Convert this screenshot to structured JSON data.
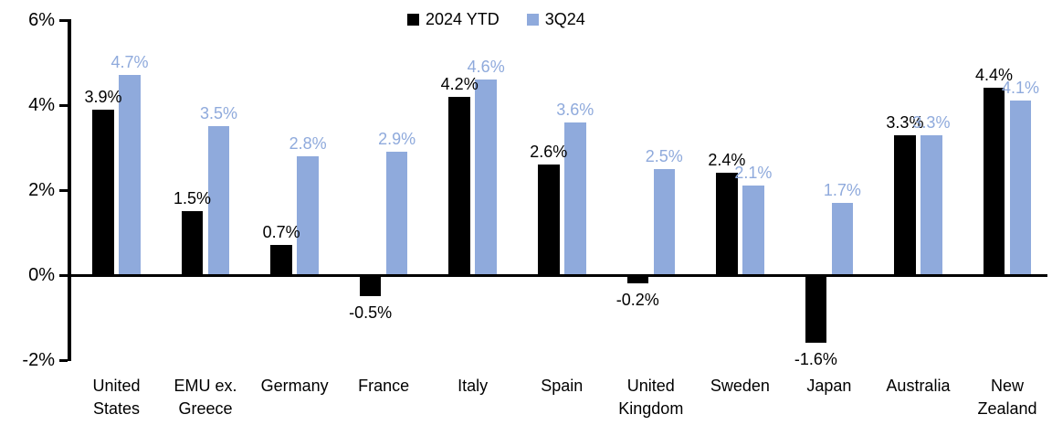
{
  "chart_data": {
    "type": "bar",
    "title": "",
    "xlabel": "",
    "ylabel": "",
    "categories": [
      "United States",
      "EMU ex. Greece",
      "Germany",
      "France",
      "Italy",
      "Spain",
      "United Kingdom",
      "Sweden",
      "Japan",
      "Australia",
      "New Zealand"
    ],
    "category_display_lines": [
      [
        "United",
        "States"
      ],
      [
        "EMU ex.",
        "Greece"
      ],
      [
        "Germany"
      ],
      [
        "France"
      ],
      [
        "Italy"
      ],
      [
        "Spain"
      ],
      [
        "United",
        "Kingdom"
      ],
      [
        "Sweden"
      ],
      [
        "Japan"
      ],
      [
        "Australia"
      ],
      [
        "New",
        "Zealand"
      ]
    ],
    "series": [
      {
        "name": "2024 YTD",
        "color": "#000000",
        "values": [
          3.9,
          1.5,
          0.7,
          -0.5,
          4.2,
          2.6,
          -0.2,
          2.4,
          -1.6,
          3.3,
          4.4
        ],
        "data_labels": [
          "3.9%",
          "1.5%",
          "0.7%",
          "-0.5%",
          "4.2%",
          "2.6%",
          "-0.2%",
          "2.4%",
          "-1.6%",
          "3.3%",
          "4.4%"
        ]
      },
      {
        "name": "3Q24",
        "color": "#8FAADC",
        "values": [
          4.7,
          3.5,
          2.8,
          2.9,
          4.6,
          3.6,
          2.5,
          2.1,
          1.7,
          3.3,
          4.1
        ],
        "data_labels": [
          "4.7%",
          "3.5%",
          "2.8%",
          "2.9%",
          "4.6%",
          "3.6%",
          "2.5%",
          "2.1%",
          "1.7%",
          "3.3%",
          "4.1%"
        ]
      }
    ],
    "ylim": [
      -2,
      6
    ],
    "yticks": [
      {
        "value": 6,
        "label": "6%"
      },
      {
        "value": 4,
        "label": "4%"
      },
      {
        "value": 2,
        "label": "2%"
      },
      {
        "value": 0,
        "label": "0%"
      },
      {
        "value": -2,
        "label": "-2%"
      }
    ],
    "grid": false,
    "legend_position": "top"
  },
  "legend": {
    "items": [
      {
        "label": "2024 YTD",
        "color": "#000000"
      },
      {
        "label": "3Q24",
        "color": "#8FAADC"
      }
    ]
  }
}
